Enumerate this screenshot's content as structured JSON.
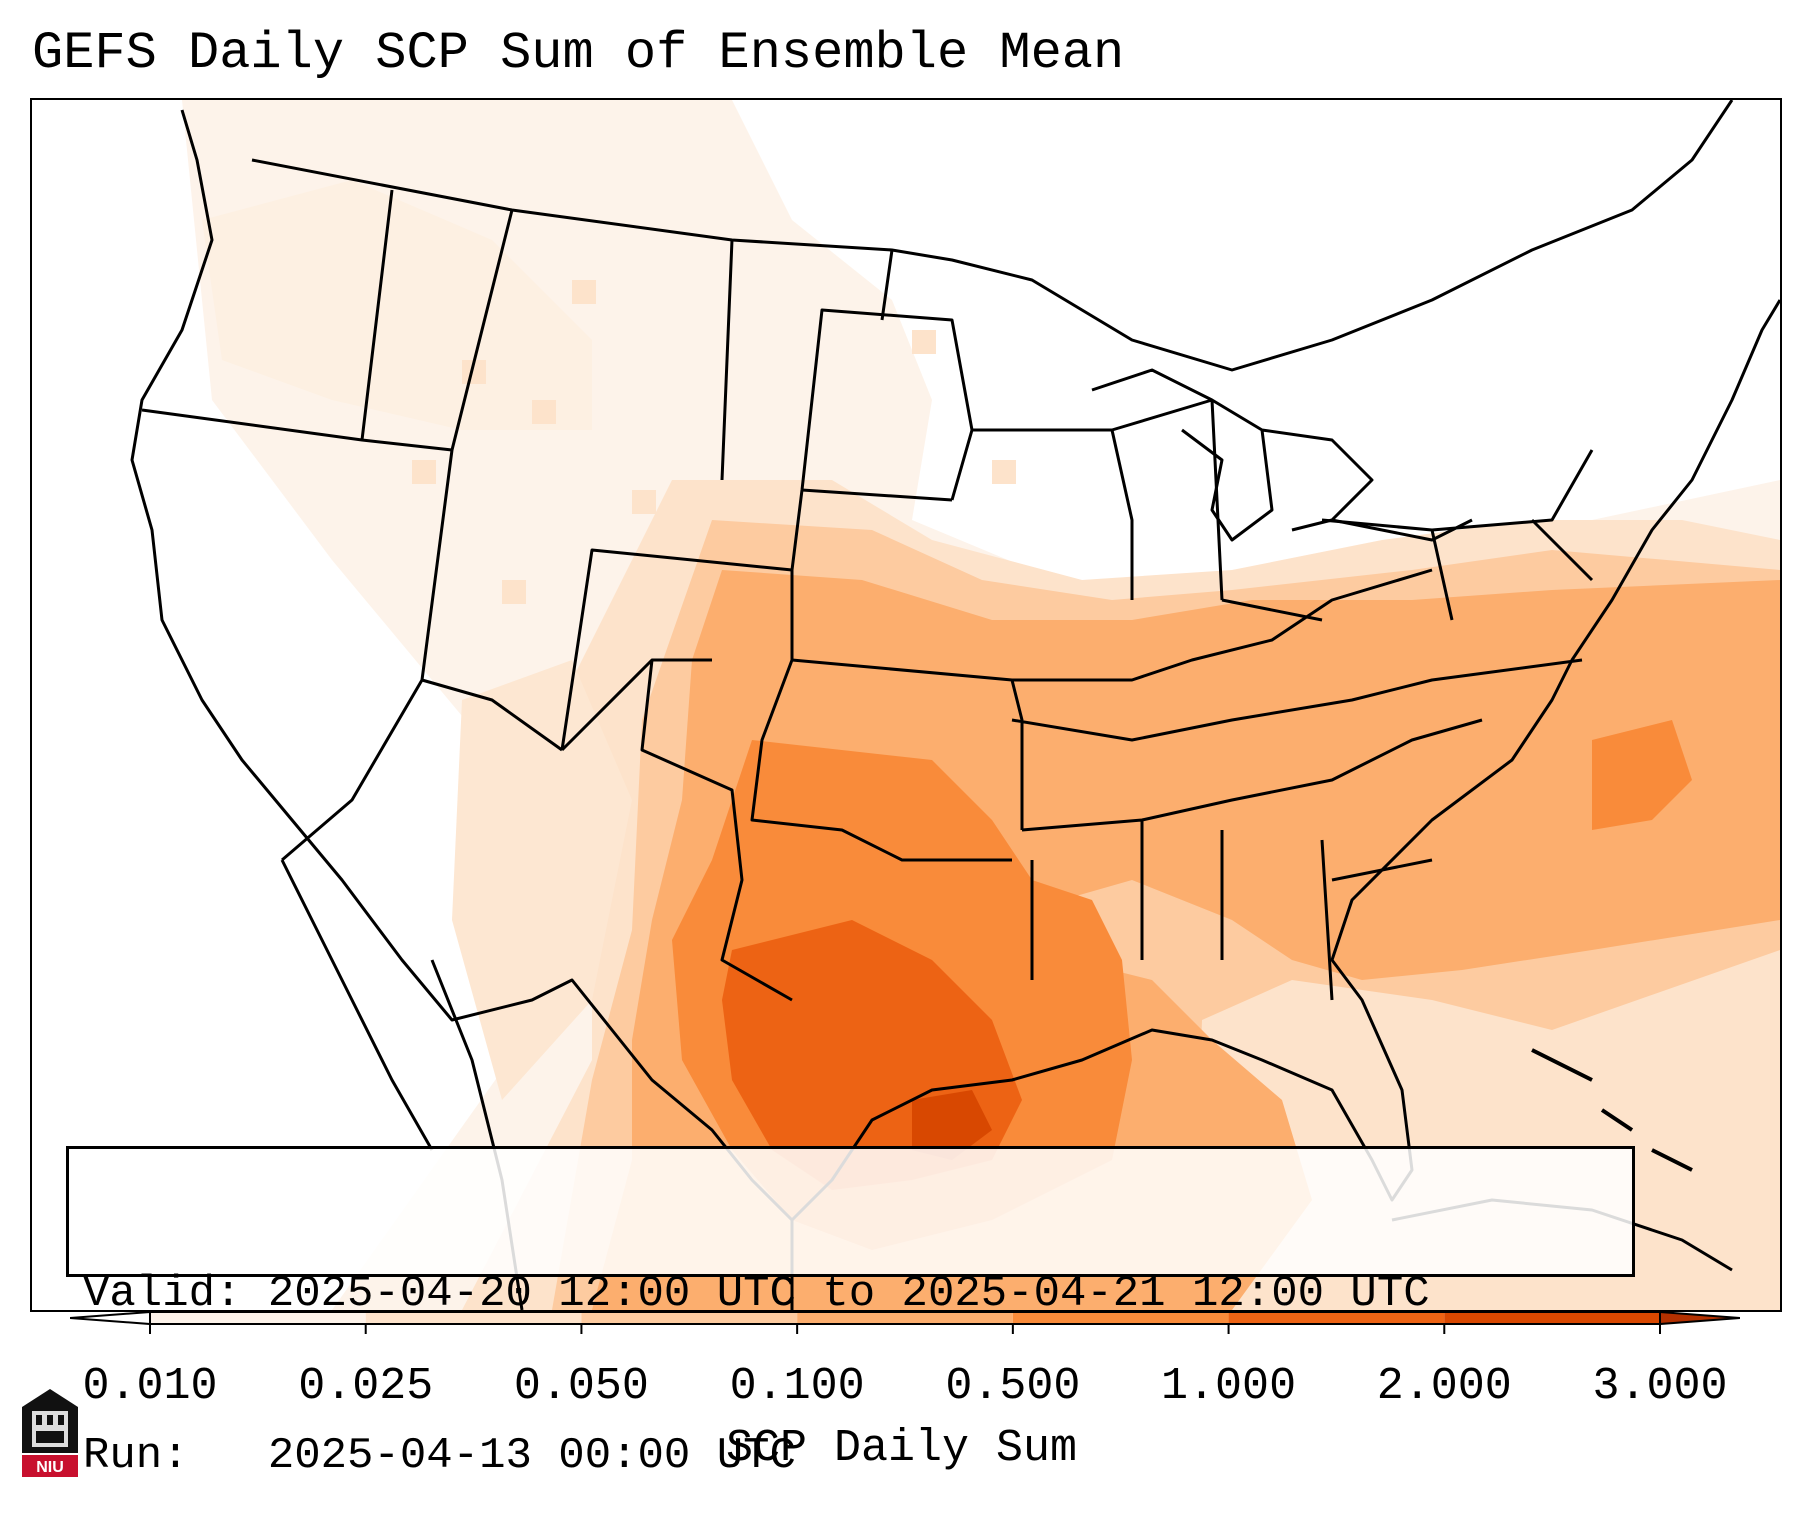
{
  "title": "GEFS Daily SCP Sum of Ensemble Mean",
  "valid_label": "Valid:",
  "valid_value": "2025-04-20 12:00 UTC to 2025-04-21 12:00 UTC",
  "run_label": "Run:",
  "run_value": "2025-04-13 00:00 UTC",
  "colorbar": {
    "label": "SCP Daily Sum",
    "ticks": [
      "0.010",
      "0.025",
      "0.050",
      "0.100",
      "0.500",
      "1.000",
      "2.000",
      "3.000"
    ],
    "colors": [
      "#fdf3ea",
      "#fde3cb",
      "#fdcba0",
      "#fcae6e",
      "#f98b3a",
      "#ed6314",
      "#d84801"
    ],
    "extend": "both"
  },
  "logo": {
    "text": "NIU",
    "icon": "niu-logo-icon"
  },
  "map": {
    "region": "Contiguous United States",
    "field": "SCP daily sum, ensemble mean",
    "max_area": "Southeast Texas / Upper Texas coast"
  }
}
